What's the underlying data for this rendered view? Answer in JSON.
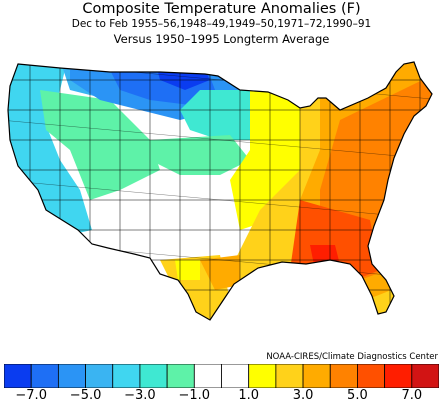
{
  "title": "Composite Temperature Anomalies (F)",
  "subtitle": "Dec to Feb  1955–56,1948–49,1949–50,1971–72,1990–91",
  "subtitle2": "Versus 1950–1995 Longterm Average",
  "credit": "NOAA-CIRES/Climate Diagnostics Center",
  "legend": {
    "colors": [
      "#0a3cf0",
      "#1e6ff5",
      "#2b94f5",
      "#3ab4f2",
      "#40d6f0",
      "#3fe8d2",
      "#5ef2a8",
      "#ffffff",
      "#ffffff",
      "#ffff00",
      "#ffd21a",
      "#ffab00",
      "#ff8200",
      "#ff5000",
      "#ff1e00",
      "#d21414"
    ],
    "ticks": [
      "−7.0",
      "−5.0",
      "−3.0",
      "−1.0",
      "1.0",
      "3.0",
      "5.0",
      "7.0"
    ]
  }
}
